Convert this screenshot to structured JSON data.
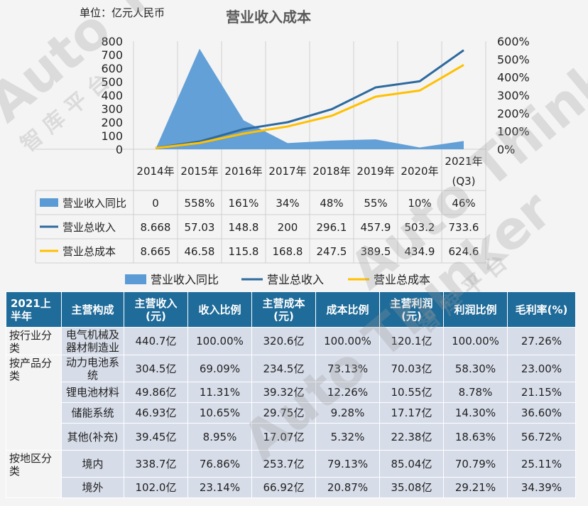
{
  "header": {
    "unit": "单位：亿元人民币",
    "title": "营业收入成本"
  },
  "watermark": {
    "brand": "Auto Thinker",
    "chars": "智 库 平 台"
  },
  "chart_data": {
    "type": "area",
    "title": "营业收入成本",
    "categories": [
      "2014年",
      "2015年",
      "2016年",
      "2017年",
      "2018年",
      "2019年",
      "2020年",
      "2021年(Q3)"
    ],
    "y_left": {
      "range": [
        0,
        800
      ],
      "ticks": [
        0,
        100,
        200,
        300,
        400,
        500,
        600,
        700,
        800
      ]
    },
    "y_right": {
      "range": [
        0,
        6
      ],
      "ticks": [
        "0%",
        "100%",
        "200%",
        "300%",
        "400%",
        "500%",
        "600%"
      ]
    },
    "series": [
      {
        "name": "营业收入同比",
        "kind": "area",
        "axis": "right",
        "color": "#5b9bd5",
        "values": [
          0,
          5.58,
          1.61,
          0.34,
          0.48,
          0.55,
          0.1,
          0.46
        ],
        "labels": [
          "0",
          "558%",
          "161%",
          "34%",
          "48%",
          "55%",
          "10%",
          "46%"
        ]
      },
      {
        "name": "营业总收入",
        "kind": "line",
        "axis": "left",
        "color": "#2e6a9e",
        "values": [
          8.668,
          57.03,
          148.8,
          200,
          296.1,
          457.9,
          503.2,
          733.6
        ],
        "labels": [
          "8.668",
          "57.03",
          "148.8",
          "200",
          "296.1",
          "457.9",
          "503.2",
          "733.6"
        ]
      },
      {
        "name": "营业总成本",
        "kind": "line",
        "axis": "left",
        "color": "#ffc000",
        "values": [
          8.665,
          46.58,
          115.8,
          168.8,
          247.5,
          389.5,
          434.9,
          624.6
        ],
        "labels": [
          "8.665",
          "46.58",
          "115.8",
          "168.8",
          "247.5",
          "389.5",
          "434.9",
          "624.6"
        ]
      }
    ],
    "grid": true,
    "legend": "bottom"
  },
  "table": {
    "headers": [
      "2021上半年",
      "主营构成",
      "主营收入(元)",
      "收入比例",
      "主营成本(元)",
      "成本比例",
      "主营利润(元)",
      "利润比例",
      "毛利率(%)"
    ],
    "groups": [
      {
        "label": "按行业分类",
        "rows": [
          [
            "电气机械及器材制造业",
            "440.7亿",
            "100.00%",
            "320.6亿",
            "100.00%",
            "120.1亿",
            "100.00%",
            "27.26%"
          ]
        ]
      },
      {
        "label": "按产品分类",
        "rows": [
          [
            "动力电池系统",
            "304.5亿",
            "69.09%",
            "234.5亿",
            "73.13%",
            "70.03亿",
            "58.30%",
            "23.00%"
          ],
          [
            "锂电池材料",
            "49.86亿",
            "11.31%",
            "39.32亿",
            "12.26%",
            "10.55亿",
            "8.78%",
            "21.15%"
          ],
          [
            "储能系统",
            "46.93亿",
            "10.65%",
            "29.75亿",
            "9.28%",
            "17.17亿",
            "14.30%",
            "36.60%"
          ],
          [
            "其他(补充)",
            "39.45亿",
            "8.95%",
            "17.07亿",
            "5.32%",
            "22.38亿",
            "18.63%",
            "56.72%"
          ]
        ]
      },
      {
        "label": "按地区分类",
        "rows": [
          [
            "境内",
            "338.7亿",
            "76.86%",
            "253.7亿",
            "79.13%",
            "85.04亿",
            "70.79%",
            "25.11%"
          ],
          [
            "境外",
            "102.0亿",
            "23.14%",
            "66.92亿",
            "20.87%",
            "35.08亿",
            "29.21%",
            "34.39%"
          ]
        ]
      }
    ]
  }
}
